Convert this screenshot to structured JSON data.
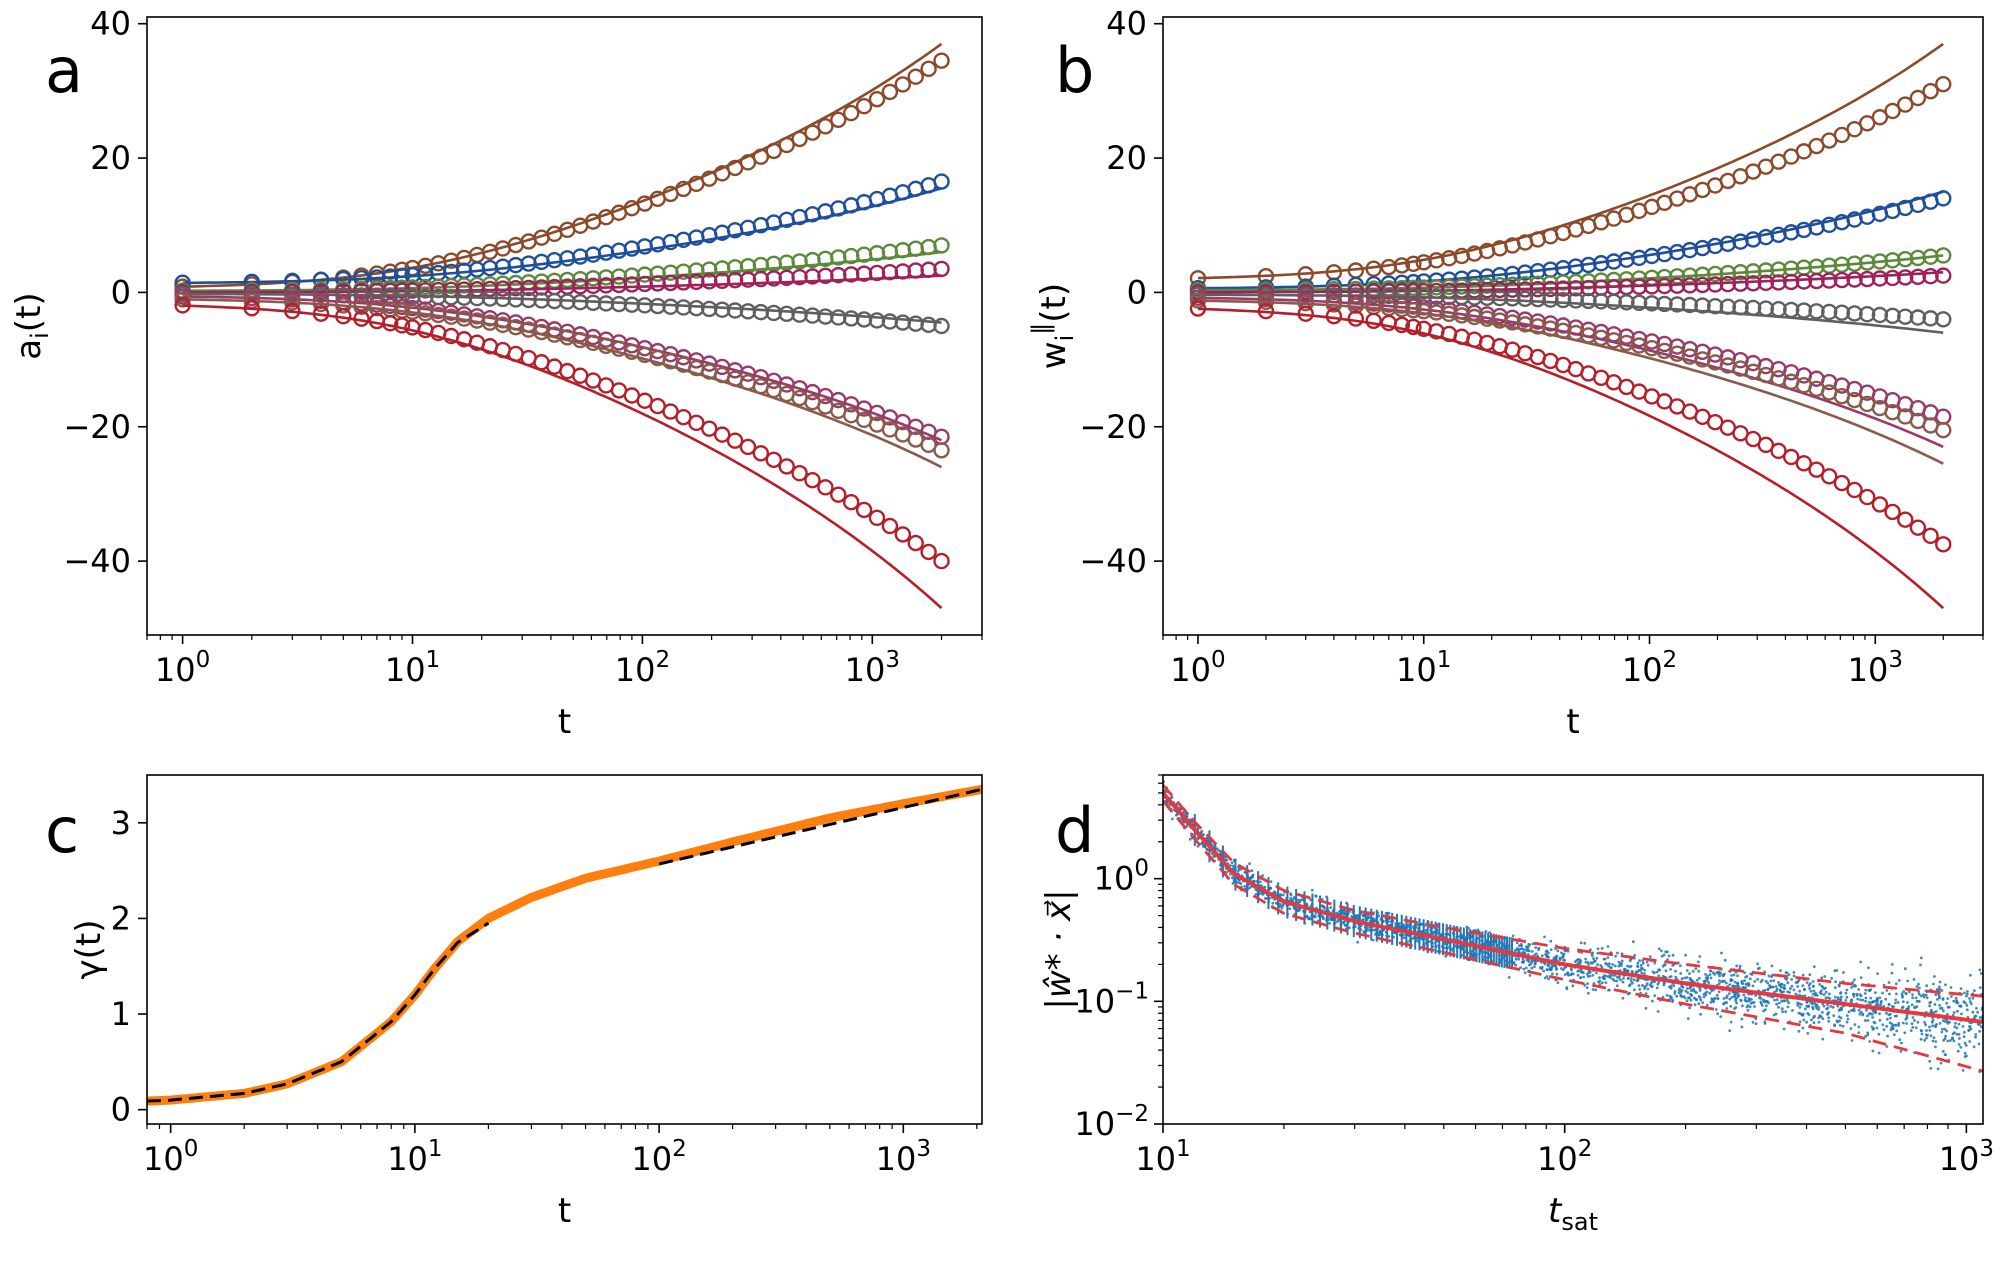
{
  "chart_data": [
    {
      "panel": "a",
      "type": "line",
      "xscale": "log",
      "xlabel": "t",
      "ylabel": "a_i(t)",
      "xlim": [
        0.7,
        3000
      ],
      "ylim": [
        -51,
        41
      ],
      "xticks": [
        1,
        10,
        100,
        1000
      ],
      "xtick_labels": [
        {
          "base": "10",
          "exp": "0"
        },
        {
          "base": "10",
          "exp": "1"
        },
        {
          "base": "10",
          "exp": "2"
        },
        {
          "base": "10",
          "exp": "3"
        }
      ],
      "yticks": [
        -40,
        -20,
        0,
        20,
        40
      ],
      "ytick_labels": [
        "−40",
        "−20",
        "0",
        "20",
        "40"
      ],
      "markers": "open circles (simulation)",
      "lines": "solid lines (theory)",
      "series": [
        {
          "color": "#8c4a2a",
          "start": 0.5,
          "theory_end": 37,
          "sim_end": 34.5,
          "onset": 12
        },
        {
          "color": "#1f4f9c",
          "start": 1.3,
          "theory_end": 15.5,
          "sim_end": 16.5,
          "onset": 14
        },
        {
          "color": "#5a8a3a",
          "start": 0.2,
          "theory_end": 6,
          "sim_end": 7,
          "onset": 15
        },
        {
          "color": "#a0205a",
          "start": 0.0,
          "theory_end": 2.5,
          "sim_end": 3.5,
          "onset": 15
        },
        {
          "color": "#5f5f5f",
          "start": -0.2,
          "theory_end": -4.5,
          "sim_end": -5,
          "onset": 15
        },
        {
          "color": "#9a3a6a",
          "start": -0.4,
          "theory_end": -22,
          "sim_end": -21.5,
          "onset": 12
        },
        {
          "color": "#8a5a4a",
          "start": -0.8,
          "theory_end": -26,
          "sim_end": -23.5,
          "onset": 12
        },
        {
          "color": "#b51f2a",
          "start": -1.5,
          "theory_end": -47,
          "sim_end": -40,
          "onset": 11
        }
      ]
    },
    {
      "panel": "b",
      "type": "line",
      "xscale": "log",
      "xlabel": "t",
      "ylabel": "w_i^‖(t)",
      "xlim": [
        0.7,
        3000
      ],
      "ylim": [
        -51,
        41
      ],
      "xticks": [
        1,
        10,
        100,
        1000
      ],
      "xtick_labels": [
        {
          "base": "10",
          "exp": "0"
        },
        {
          "base": "10",
          "exp": "1"
        },
        {
          "base": "10",
          "exp": "2"
        },
        {
          "base": "10",
          "exp": "3"
        }
      ],
      "yticks": [
        -40,
        -20,
        0,
        20,
        40
      ],
      "ytick_labels": [
        "−40",
        "−20",
        "0",
        "20",
        "40"
      ],
      "markers": "open circles (simulation)",
      "lines": "solid lines (theory)",
      "series": [
        {
          "color": "#8c4a2a",
          "start": 1.8,
          "theory_end": 37,
          "sim_end": 31,
          "onset": 12
        },
        {
          "color": "#1f4f9c",
          "start": 0.5,
          "theory_end": 15,
          "sim_end": 14,
          "onset": 14
        },
        {
          "color": "#5a8a3a",
          "start": 0.3,
          "theory_end": 5.5,
          "sim_end": 5.5,
          "onset": 15
        },
        {
          "color": "#a0205a",
          "start": 0.0,
          "theory_end": 3,
          "sim_end": 2.5,
          "onset": 15
        },
        {
          "color": "#5f5f5f",
          "start": -0.3,
          "theory_end": -6,
          "sim_end": -4,
          "onset": 15
        },
        {
          "color": "#9a3a6a",
          "start": -0.6,
          "theory_end": -23,
          "sim_end": -18.5,
          "onset": 12
        },
        {
          "color": "#8a5a4a",
          "start": -1.0,
          "theory_end": -25.5,
          "sim_end": -20.5,
          "onset": 12
        },
        {
          "color": "#b51f2a",
          "start": -2.0,
          "theory_end": -47,
          "sim_end": -37.5,
          "onset": 11
        }
      ]
    },
    {
      "panel": "c",
      "type": "line",
      "xscale": "log",
      "xlabel": "t",
      "ylabel": "γ(t)",
      "xlim": [
        0.8,
        2100
      ],
      "ylim": [
        -0.15,
        3.5
      ],
      "xticks": [
        1,
        10,
        100,
        1000
      ],
      "xtick_labels": [
        {
          "base": "10",
          "exp": "0"
        },
        {
          "base": "10",
          "exp": "1"
        },
        {
          "base": "10",
          "exp": "2"
        },
        {
          "base": "10",
          "exp": "3"
        }
      ],
      "yticks": [
        0,
        1,
        2,
        3
      ],
      "ytick_labels": [
        "0",
        "1",
        "2",
        "3"
      ],
      "series": [
        {
          "style": "solid-thick",
          "color": "#ff7f0e",
          "x": [
            0.8,
            1,
            2,
            3,
            5,
            8,
            10,
            12,
            15,
            20,
            30,
            50,
            100,
            200,
            500,
            1000,
            2100
          ],
          "y": [
            0.09,
            0.1,
            0.17,
            0.27,
            0.5,
            0.92,
            1.2,
            1.47,
            1.76,
            2.0,
            2.22,
            2.42,
            2.6,
            2.8,
            3.05,
            3.2,
            3.35
          ]
        },
        {
          "style": "dashed",
          "color": "#000000",
          "x": [
            0.8,
            1,
            2,
            3,
            5,
            8,
            10,
            12,
            15,
            20
          ],
          "y": [
            0.09,
            0.1,
            0.17,
            0.27,
            0.5,
            0.92,
            1.2,
            1.47,
            1.75,
            1.95
          ]
        },
        {
          "style": "dashed",
          "color": "#000000",
          "x": [
            100,
            2100
          ],
          "y": [
            2.57,
            3.35
          ]
        }
      ]
    },
    {
      "panel": "d",
      "type": "scatter",
      "xscale": "log",
      "yscale": "log",
      "xlabel": "t_sat",
      "ylabel": "|ŵ* · x⃗|",
      "xlim": [
        10,
        1100
      ],
      "ylim": [
        0.01,
        7
      ],
      "xticks": [
        10,
        100,
        1000
      ],
      "xtick_labels": [
        {
          "base": "10",
          "exp": "1"
        },
        {
          "base": "10",
          "exp": "2"
        },
        {
          "base": "10",
          "exp": "3"
        }
      ],
      "yticks": [
        0.01,
        0.1,
        1
      ],
      "ytick_labels": [
        {
          "base": "10",
          "exp": "−2"
        },
        {
          "base": "10",
          "exp": "−1"
        },
        {
          "base": "10",
          "exp": "0"
        }
      ],
      "scatter_color": "#1f77b4",
      "fit_color": "#e8383d",
      "series": [
        {
          "style": "solid",
          "color": "#e8383d",
          "x": [
            10,
            12,
            15,
            20,
            30,
            50,
            100,
            200,
            500,
            1100
          ],
          "y": [
            5.0,
            2.5,
            1.1,
            0.65,
            0.45,
            0.32,
            0.2,
            0.14,
            0.095,
            0.068
          ]
        },
        {
          "style": "dashed",
          "color": "#e8383d",
          "x": [
            10,
            12,
            15,
            20,
            30,
            50,
            100,
            200,
            500,
            1100
          ],
          "y": [
            5.8,
            2.9,
            1.35,
            0.8,
            0.55,
            0.4,
            0.27,
            0.2,
            0.14,
            0.11
          ]
        },
        {
          "style": "dashed",
          "color": "#e8383d",
          "x": [
            10,
            12,
            15,
            20,
            30,
            50,
            100,
            200,
            500,
            1100
          ],
          "y": [
            4.3,
            2.1,
            0.9,
            0.52,
            0.36,
            0.25,
            0.15,
            0.095,
            0.055,
            0.027
          ]
        }
      ]
    }
  ]
}
